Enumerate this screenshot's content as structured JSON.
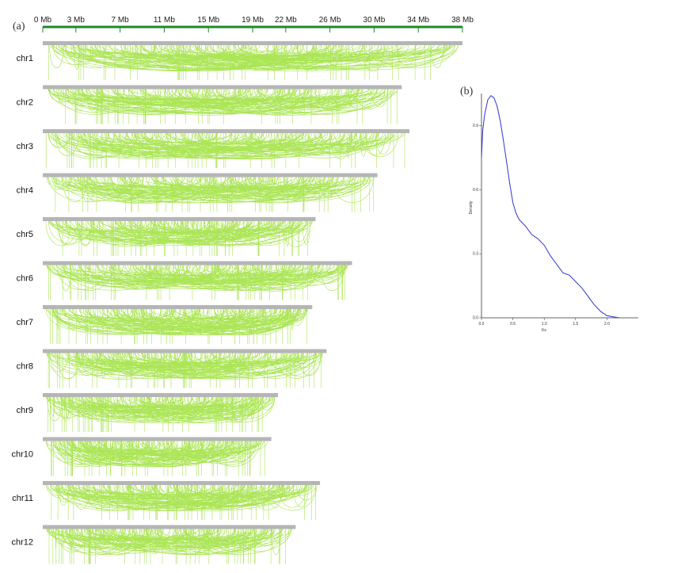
{
  "panel_a_label": "(a)",
  "panel_b_label": "(b)",
  "chart_data": [
    {
      "type": "genome-synteny-map",
      "scale_unit": "Mb",
      "scale_ticks": [
        "0 Mb",
        "3 Mb",
        "7 Mb",
        "11 Mb",
        "15 Mb",
        "19 Mb",
        "22 Mb",
        "26 Mb",
        "30 Mb",
        "34 Mb",
        "38 Mb"
      ],
      "scale_range": [
        0,
        38
      ],
      "chromosomes": [
        {
          "name": "chr1",
          "length": 38.0
        },
        {
          "name": "chr2",
          "length": 32.5
        },
        {
          "name": "chr3",
          "length": 33.2
        },
        {
          "name": "chr4",
          "length": 30.3
        },
        {
          "name": "chr5",
          "length": 24.7
        },
        {
          "name": "chr6",
          "length": 28.0
        },
        {
          "name": "chr7",
          "length": 24.4
        },
        {
          "name": "chr8",
          "length": 25.7
        },
        {
          "name": "chr9",
          "length": 21.3
        },
        {
          "name": "chr10",
          "length": 20.7
        },
        {
          "name": "chr11",
          "length": 25.1
        },
        {
          "name": "chr12",
          "length": 22.9
        }
      ],
      "colors": {
        "chromosome_bar": "#b5b5b5",
        "links": "#8fdc1e",
        "scale_line": "#1e8a2a"
      }
    },
    {
      "type": "line",
      "xlabel": "Ks",
      "ylabel": "Density",
      "xlim": [
        0.0,
        2.5
      ],
      "ylim": [
        0.0,
        1.05
      ],
      "x_ticks": [
        "0.0",
        "0.5",
        "1.0",
        "1.5",
        "2.0"
      ],
      "y_ticks": [
        "0.0",
        "0.3",
        "0.6",
        "0.9"
      ],
      "series": [
        {
          "x": [
            0.0,
            0.02,
            0.05,
            0.1,
            0.15,
            0.2,
            0.25,
            0.3,
            0.35,
            0.4,
            0.45,
            0.5,
            0.55,
            0.6,
            0.7,
            0.8,
            0.9,
            1.0,
            1.1,
            1.2,
            1.3,
            1.4,
            1.5,
            1.6,
            1.7,
            1.8,
            1.9,
            2.0,
            2.1,
            2.2
          ],
          "y": [
            0.75,
            0.88,
            0.95,
            1.02,
            1.04,
            1.03,
            0.99,
            0.92,
            0.83,
            0.73,
            0.63,
            0.54,
            0.49,
            0.46,
            0.43,
            0.39,
            0.37,
            0.34,
            0.29,
            0.25,
            0.21,
            0.2,
            0.17,
            0.14,
            0.1,
            0.06,
            0.03,
            0.01,
            0.005,
            0.0
          ],
          "color": "#3f47c9"
        }
      ]
    }
  ]
}
